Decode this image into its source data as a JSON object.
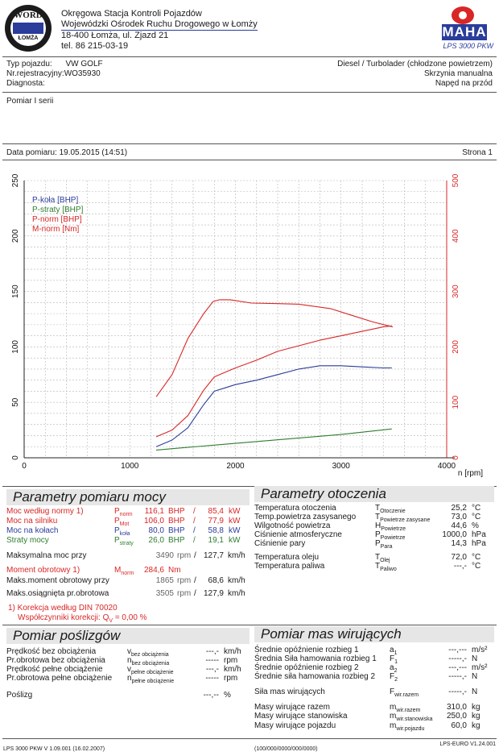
{
  "header": {
    "logo_left_text": "WORD",
    "logo_left_sub": "ŁOMŻA",
    "station_line1": "Okręgowa Stacja Kontroli Pojazdów",
    "station_line2": "Wojewódzki Ośrodek Ruchu Drogowego w Łomży",
    "station_line3": "18-400 Łomża, ul. Zjazd 21",
    "station_line4": "tel. 86 215-03-19",
    "brand_logo_text": "MAHA",
    "brand_model": "LPS 3000 PKW"
  },
  "vehicle": {
    "type_label": "Typ pojazdu:",
    "type_value": "VW GOLF",
    "reg_label": "Nr.rejestracyjny:",
    "reg_value": "WO35930",
    "diag_label": "Diagnosta:",
    "engine": "Diesel / Turbolader (chłodzone powietrzem)",
    "gearbox": "Skrzynia manualna",
    "drive": "Napęd na przód"
  },
  "measurement": {
    "series": "Pomiar I serii",
    "date_label": "Data pomiaru:",
    "date_value": "19.05.2015 (14:51)",
    "page_label": "Strona 1"
  },
  "chart_data": {
    "type": "line",
    "x_unit": "n [rpm]",
    "xlim": [
      0,
      4000
    ],
    "x_ticks": [
      "0",
      "1000",
      "2000",
      "3000",
      "4000"
    ],
    "ylim_left": [
      0,
      250
    ],
    "y_ticks_left": [
      "0",
      "50",
      "100",
      "150",
      "200",
      "250"
    ],
    "ylim_right": [
      0,
      500
    ],
    "y_ticks_right": [
      "0",
      "100",
      "200",
      "300",
      "400",
      "500"
    ],
    "grid": true,
    "legend_position": "top-left",
    "series": [
      {
        "name": "P-koła [BHP]",
        "color": "#2a3d9a",
        "axis": "left",
        "x": [
          1250,
          1400,
          1550,
          1700,
          1800,
          1900,
          2000,
          2200,
          2400,
          2600,
          2800,
          3000,
          3200,
          3400,
          3480
        ],
        "y": [
          10,
          16,
          27,
          48,
          60,
          63,
          66,
          70,
          75,
          80,
          83,
          83,
          82,
          81,
          81
        ]
      },
      {
        "name": "P-straty [BHP]",
        "color": "#2f7d2f",
        "axis": "left",
        "x": [
          1250,
          1500,
          2000,
          2500,
          3000,
          3480
        ],
        "y": [
          7,
          9,
          13,
          17,
          21,
          26
        ]
      },
      {
        "name": "P-norm [BHP]",
        "color": "#d92626",
        "axis": "left",
        "x": [
          1250,
          1400,
          1550,
          1700,
          1800,
          1900,
          2000,
          2200,
          2400,
          2600,
          2800,
          3000,
          3200,
          3400,
          3480
        ],
        "y": [
          19,
          25,
          38,
          61,
          73,
          77,
          81,
          88,
          96,
          101,
          106,
          110,
          114,
          118,
          119
        ]
      },
      {
        "name": "M-norm [Nm]",
        "color": "#d92626",
        "axis": "right",
        "x": [
          1250,
          1400,
          1550,
          1700,
          1790,
          1850,
          1950,
          2150,
          2400,
          2600,
          2900,
          3100,
          3300,
          3450,
          3490
        ],
        "y": [
          110,
          150,
          215,
          260,
          282,
          285,
          285,
          279,
          278,
          277,
          269,
          257,
          245,
          238,
          236
        ]
      }
    ]
  },
  "power": {
    "title": "Parametry pomiaru mocy",
    "rows": [
      {
        "label": "Moc według normy 1)",
        "sym": "P",
        "sub": "norm",
        "v1": "116,1",
        "u1": "BHP",
        "v2": "85,4",
        "u2": "kW",
        "color": "red"
      },
      {
        "label": "Moc na silniku",
        "sym": "P",
        "sub": "Mot",
        "v1": "106,0",
        "u1": "BHP",
        "v2": "77,9",
        "u2": "kW",
        "color": "red"
      },
      {
        "label": "Moc na kołach",
        "sym": "P",
        "sub": "koła",
        "v1": "80,0",
        "u1": "BHP",
        "v2": "58,8",
        "u2": "kW",
        "color": "blue"
      },
      {
        "label": "Straty mocy",
        "sym": "P",
        "sub": "straty",
        "v1": "26,0",
        "u1": "BHP",
        "v2": "19,1",
        "u2": "kW",
        "color": "green"
      }
    ],
    "max_power_label": "Maksymalna moc przy",
    "max_power_rpm": "3490",
    "max_power_speed": "127,7",
    "rpm_unit": "rpm",
    "kmh_unit": "km/h",
    "torque_label": "Moment obrotowy 1)",
    "torque_sym": "M",
    "torque_sub": "norm",
    "torque_value": "284,6",
    "torque_unit": "Nm",
    "max_torque_label": "Maks.moment obrotowy przy",
    "max_torque_rpm": "1865",
    "max_torque_speed": "68,6",
    "max_rpm_label": "Maks.osiągnięta pr.obrotowa",
    "max_rpm_value": "3505",
    "max_rpm_speed": "127,9",
    "norm_note": "1) Korekcja według DIN 70020",
    "corr_label": "Współczynniki korekcji: Q",
    "corr_sub": "V",
    "corr_value": "= 0,00 %"
  },
  "environment": {
    "title": "Parametry otoczenia",
    "rows": [
      {
        "label": "Temperatura otoczenia",
        "sym": "T",
        "sub": "Otoczenie",
        "value": "25,2",
        "unit": "°C"
      },
      {
        "label": "Temp.powietrza zasysanego",
        "sym": "T",
        "sub": "Powietrze zasysane",
        "value": "73,0",
        "unit": "°C"
      },
      {
        "label": "Wilgotność powietrza",
        "sym": "H",
        "sub": "Powietrze",
        "value": "44,6",
        "unit": "%"
      },
      {
        "label": "Ciśnienie atmosferyczne",
        "sym": "P",
        "sub": "Powietrze",
        "value": "1000,0",
        "unit": "hPa"
      },
      {
        "label": "Ciśnienie pary",
        "sym": "P",
        "sub": "Para",
        "value": "14,3",
        "unit": "hPa"
      },
      {
        "label": "Temperatura oleju",
        "sym": "T",
        "sub": "Olej",
        "value": "72,0",
        "unit": "°C"
      },
      {
        "label": "Temperatura paliwa",
        "sym": "T",
        "sub": "Paliwo",
        "value": "---,-",
        "unit": "°C"
      }
    ]
  },
  "slip": {
    "title": "Pomiar poślizgów",
    "rows": [
      {
        "label": "Prędkość bez obciążenia",
        "sym": "v",
        "sub": "bez obciążenia",
        "value": "---,-",
        "unit": "km/h"
      },
      {
        "label": "Pr.obrotowa bez obciążenia",
        "sym": "n",
        "sub": "bez obciążenia",
        "value": "-----",
        "unit": "rpm"
      },
      {
        "label": "Prędkość pełne obciążenie",
        "sym": "v",
        "sub": "pełne obciążenie",
        "value": "---,-",
        "unit": "km/h"
      },
      {
        "label": "Pr.obrotowa pełne obciążenie",
        "sym": "n",
        "sub": "pełne obciążenie",
        "value": "-----",
        "unit": "rpm"
      }
    ],
    "slip_label": "Poślizg",
    "slip_value": "---,--",
    "slip_unit": "%"
  },
  "rotating": {
    "title": "Pomiar mas wirujących",
    "rows": [
      {
        "label": "Średnie opóźnienie rozbieg 1",
        "sym": "a",
        "sub": "1",
        "value": "---,---",
        "unit": "m/s²"
      },
      {
        "label": "Średnia Siła hamowania rozbieg 1",
        "sym": "F",
        "sub": "1",
        "value": "-----,-",
        "unit": "N"
      },
      {
        "label": "Średnie opóźnienie rozbieg 2",
        "sym": "a",
        "sub": "2",
        "value": "---,---",
        "unit": "m/s²"
      },
      {
        "label": "Średnie siła hamowania rozbieg 2",
        "sym": "F",
        "sub": "2",
        "value": "-----,-",
        "unit": "N"
      },
      {
        "label": "Siła mas wirujących",
        "sym": "F",
        "sub": "wir.razem",
        "value": "-----,-",
        "unit": "N"
      },
      {
        "label": "Masy wirujące razem",
        "sym": "m",
        "sub": "wir.razem",
        "value": "310,0",
        "unit": "kg"
      },
      {
        "label": "Masy wirujące stanowiska",
        "sym": "m",
        "sub": "wir.stanowiska",
        "value": "250,0",
        "unit": "kg"
      },
      {
        "label": "Masy wirujące pojazdu",
        "sym": "m",
        "sub": "wir.pojazdu",
        "value": "60,0",
        "unit": "kg"
      }
    ]
  },
  "footer": {
    "left": "LPS 3000 PKW V 1.09.001 (16.02.2007)",
    "center": "(100/000/0000/000/0000)",
    "right": "LPS-EURO V1.24.001"
  }
}
